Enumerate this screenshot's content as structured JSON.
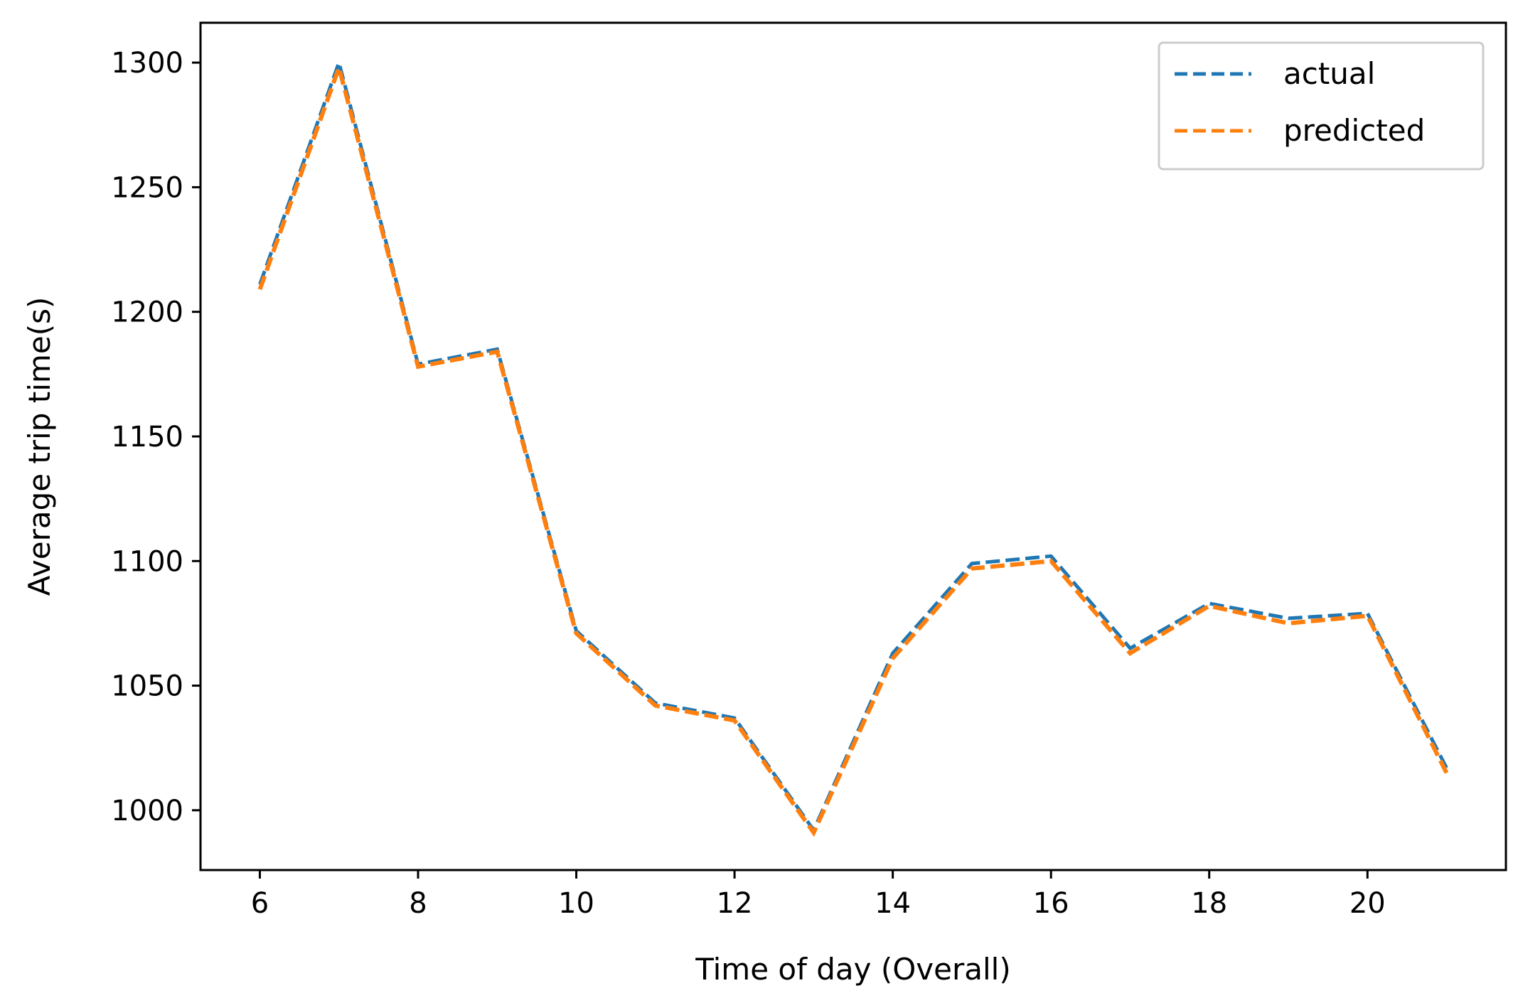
{
  "chart_data": {
    "type": "line",
    "xlabel": "Time of day (Overall)",
    "ylabel": "Average trip time(s)",
    "x": [
      6,
      7,
      8,
      9,
      10,
      11,
      12,
      13,
      14,
      15,
      16,
      17,
      18,
      19,
      20,
      21
    ],
    "xlim": [
      5.25,
      21.75
    ],
    "ylim": [
      976,
      1316
    ],
    "xticks": [
      6,
      8,
      10,
      12,
      14,
      16,
      18,
      20
    ],
    "yticks": [
      1000,
      1050,
      1100,
      1150,
      1200,
      1250,
      1300
    ],
    "grid": false,
    "legend_position": "top-right",
    "series": [
      {
        "name": "actual",
        "color": "#1f77b4",
        "values": [
          1211,
          1300,
          1179,
          1185,
          1072,
          1043,
          1037,
          992,
          1063,
          1099,
          1102,
          1065,
          1083,
          1077,
          1079,
          1017
        ]
      },
      {
        "name": "predicted",
        "color": "#ff7f0e",
        "values": [
          1209,
          1298,
          1178,
          1184,
          1071,
          1042,
          1036,
          991,
          1061,
          1097,
          1100,
          1063,
          1082,
          1075,
          1078,
          1015
        ]
      }
    ]
  }
}
